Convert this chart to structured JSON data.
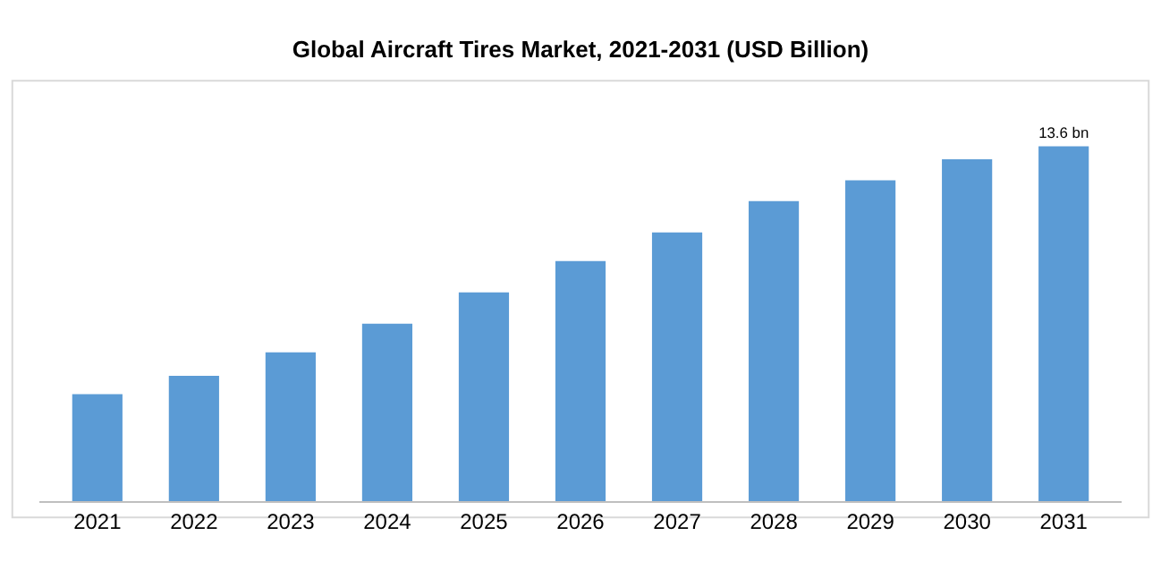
{
  "chart_data": {
    "type": "bar",
    "title": "Global Aircraft Tires Market, 2021-2031 (USD Billion)",
    "categories": [
      "2021",
      "2022",
      "2023",
      "2024",
      "2025",
      "2026",
      "2027",
      "2028",
      "2029",
      "2030",
      "2031"
    ],
    "values": [
      4.1,
      4.8,
      5.7,
      6.8,
      8.0,
      9.2,
      10.3,
      11.5,
      12.3,
      13.1,
      13.6
    ],
    "value_labels": [
      null,
      null,
      null,
      null,
      null,
      null,
      null,
      null,
      null,
      null,
      "13.6 bn"
    ],
    "color": "#5b9bd5"
  }
}
